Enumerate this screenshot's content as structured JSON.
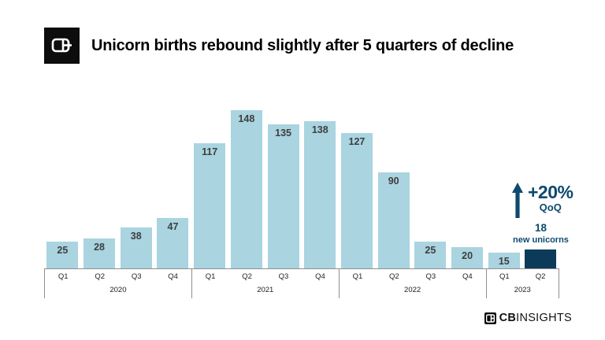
{
  "header": {
    "title": "Unicorn births rebound slightly after 5 quarters of decline",
    "logo_icon": "cb-insights-logomark"
  },
  "footer": {
    "brand_bold": "CB",
    "brand_light": "INSIGHTS",
    "logo_icon": "cb-insights-logomark-small"
  },
  "chart_data": {
    "type": "bar",
    "title": "Unicorn births rebound slightly after 5 quarters of decline",
    "ylabel": "",
    "xlabel": "",
    "ylim": [
      0,
      155
    ],
    "grid": false,
    "categories": [
      "Q1 2020",
      "Q2 2020",
      "Q3 2020",
      "Q4 2020",
      "Q1 2021",
      "Q2 2021",
      "Q3 2021",
      "Q4 2021",
      "Q1 2022",
      "Q2 2022",
      "Q3 2022",
      "Q4 2022",
      "Q1 2023",
      "Q2 2023"
    ],
    "values": [
      25,
      28,
      38,
      47,
      117,
      148,
      135,
      138,
      127,
      90,
      25,
      20,
      15,
      18
    ],
    "groups": [
      {
        "year": "2020",
        "quarters": [
          "Q1",
          "Q2",
          "Q3",
          "Q4"
        ],
        "values": [
          25,
          28,
          38,
          47
        ]
      },
      {
        "year": "2021",
        "quarters": [
          "Q1",
          "Q2",
          "Q3",
          "Q4"
        ],
        "values": [
          117,
          148,
          135,
          138
        ]
      },
      {
        "year": "2022",
        "quarters": [
          "Q1",
          "Q2",
          "Q3",
          "Q4"
        ],
        "values": [
          127,
          90,
          25,
          20
        ]
      },
      {
        "year": "2023",
        "quarters": [
          "Q1",
          "Q2"
        ],
        "values": [
          15,
          18
        ]
      }
    ],
    "highlight": {
      "category": "Q2 2023",
      "value": "18",
      "caption": "new unicorns"
    },
    "annotation": {
      "change": "+20%",
      "caption": "QoQ",
      "arrow": "up-arrow-icon"
    },
    "colors": {
      "bar": "#a9d4e0",
      "highlight_bar": "#0c3b59",
      "annotation_text": "#0d4a6e",
      "value_label": "#3e3e3e",
      "axis_line": "#8f8f8f"
    }
  }
}
